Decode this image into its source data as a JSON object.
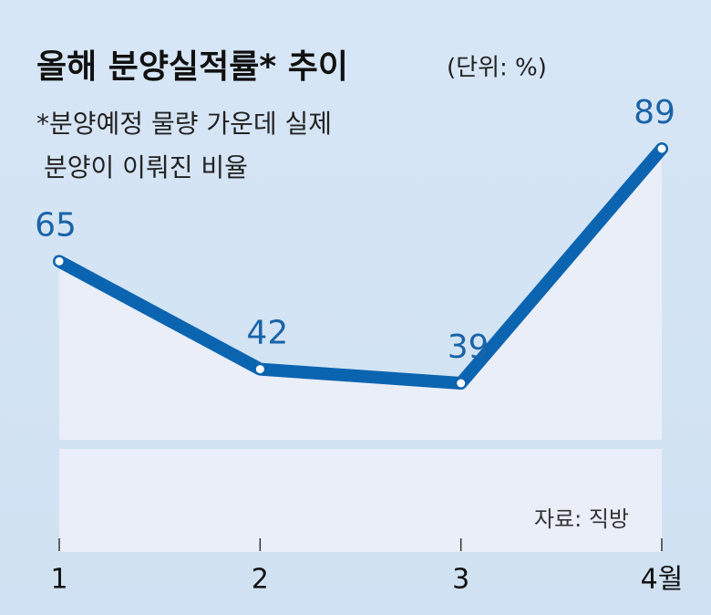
{
  "chart_data": {
    "type": "line",
    "title": "올해 분양실적률* 추이",
    "subtitle": "(단위: %)",
    "note": [
      "*분양예정 물량 가운데 실제",
      "분양이 이뤄진 비율"
    ],
    "source": "자료: 직방",
    "categories": [
      "1",
      "2",
      "3",
      "4월"
    ],
    "series": [
      {
        "color": "#0b64b0",
        "values": [
          65,
          42,
          39,
          89
        ]
      }
    ]
  }
}
